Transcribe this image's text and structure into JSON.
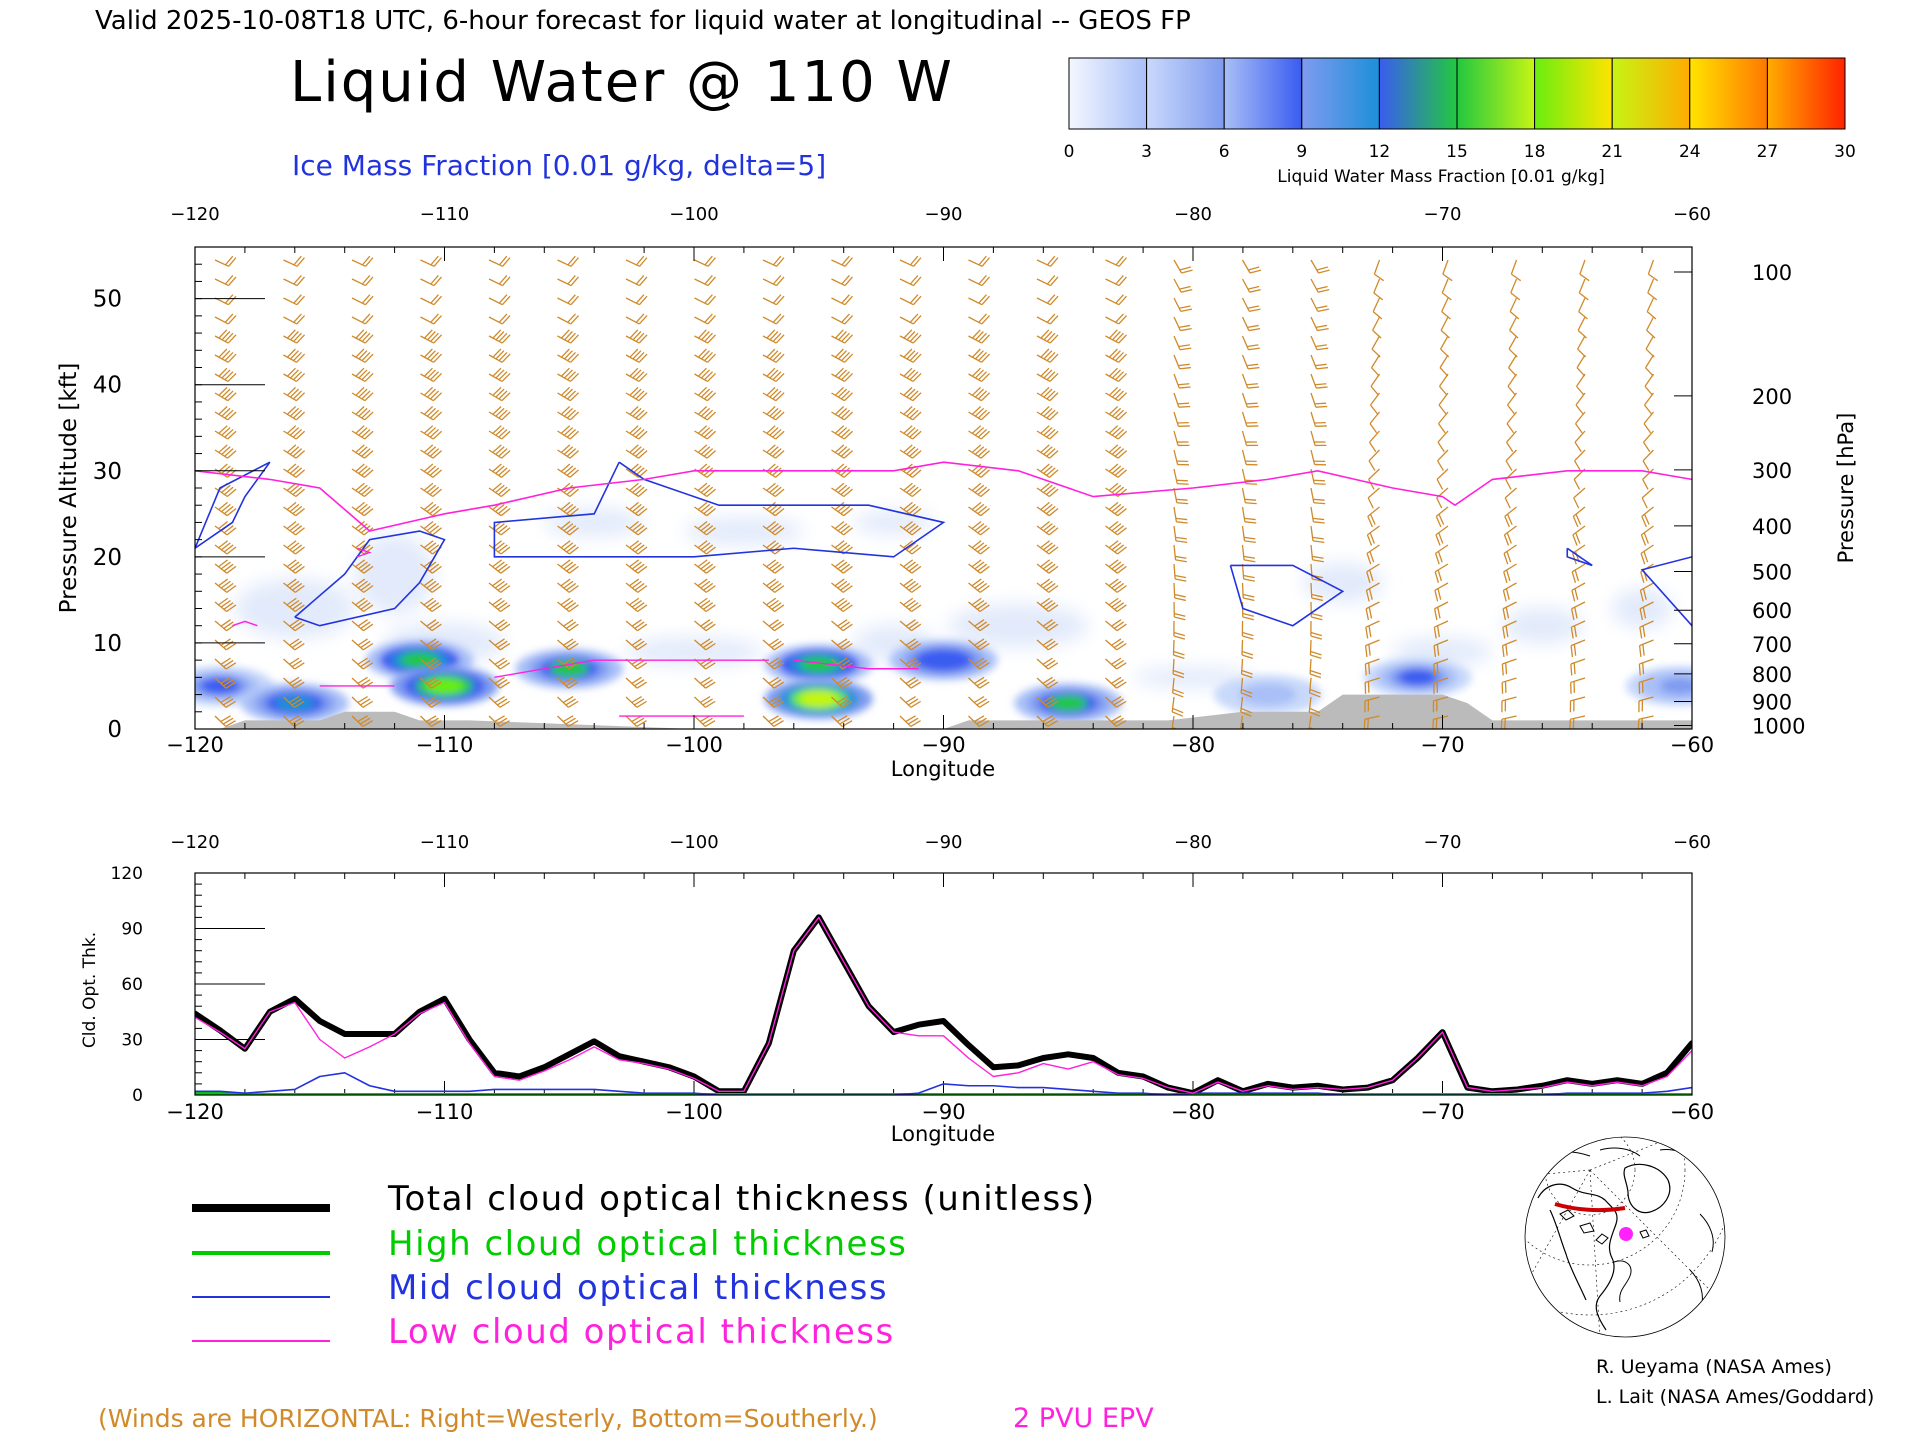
{
  "header": {
    "valid_line": "Valid 2025-10-08T18 UTC, 6-hour forecast for liquid water at longitudinal -- GEOS FP",
    "title": "Liquid Water @ 110 W",
    "ice_label": "Ice Mass Fraction [0.01 g/kg, delta=5]"
  },
  "colorbar": {
    "label": "Liquid Water Mass Fraction [0.01 g/kg]",
    "ticks": [
      "0",
      "3",
      "6",
      "9",
      "12",
      "15",
      "18",
      "21",
      "24",
      "27",
      "30"
    ],
    "colors": [
      "#f4f7ff",
      "#c9d9fb",
      "#a9bff7",
      "#7f9bf0",
      "#3a5cf0",
      "#1d8fd8",
      "#22c840",
      "#69ee10",
      "#c6f514",
      "#ffe400",
      "#ffac00",
      "#ff7700",
      "#ff2200"
    ]
  },
  "colors": {
    "ice_contour": "#2233dd",
    "epv_contour": "#ff22dd",
    "wind_barb": "#d08a2a",
    "terrain": "#bbbbbb",
    "total": "#000000",
    "high": "#00cc00",
    "mid": "#2233dd",
    "low": "#ff22dd"
  },
  "chart_data": [
    {
      "type": "heatmap",
      "title": "Liquid Water @ 110 W",
      "xlabel": "Longitude",
      "ylabel": "Pressure Altitude [kft]",
      "ylabel_right": "Pressure [hPa]",
      "xlim": [
        -120,
        -60
      ],
      "ylim": [
        0,
        56
      ],
      "x_ticks": [
        "-120",
        "-110",
        "-100",
        "-90",
        "-80",
        "-70",
        "-60"
      ],
      "y_ticks": [
        "0",
        "10",
        "20",
        "30",
        "40",
        "50"
      ],
      "pressure_ticks": [
        {
          "label": "100",
          "kft": 53.1
        },
        {
          "label": "200",
          "kft": 38.7
        },
        {
          "label": "300",
          "kft": 30.1
        },
        {
          "label": "400",
          "kft": 23.6
        },
        {
          "label": "500",
          "kft": 18.3
        },
        {
          "label": "600",
          "kft": 13.8
        },
        {
          "label": "700",
          "kft": 9.9
        },
        {
          "label": "800",
          "kft": 6.4
        },
        {
          "label": "900",
          "kft": 3.2
        },
        {
          "label": "1000",
          "kft": 0.4
        }
      ],
      "liquid_water_blobs": [
        {
          "lon": -119,
          "kft": 5,
          "value": 9
        },
        {
          "lon": -116,
          "kft": 3,
          "value": 13
        },
        {
          "lon": -111,
          "kft": 8,
          "value": 15
        },
        {
          "lon": -110,
          "kft": 5,
          "value": 18
        },
        {
          "lon": -105,
          "kft": 7,
          "value": 14
        },
        {
          "lon": -95,
          "kft": 7.5,
          "value": 16
        },
        {
          "lon": -95,
          "kft": 3.5,
          "value": 21
        },
        {
          "lon": -90,
          "kft": 8,
          "value": 11
        },
        {
          "lon": -85,
          "kft": 3,
          "value": 14
        },
        {
          "lon": -77,
          "kft": 4,
          "value": 6
        },
        {
          "lon": -71,
          "kft": 6,
          "value": 9
        },
        {
          "lon": -60.5,
          "kft": 5,
          "value": 7
        }
      ],
      "ice_contours": [
        [
          [
            -120,
            21
          ],
          [
            -119,
            28
          ],
          [
            -117,
            31
          ],
          [
            -118,
            27
          ],
          [
            -118.5,
            24
          ],
          [
            -120,
            21
          ]
        ],
        [
          [
            -116,
            13
          ],
          [
            -114,
            18
          ],
          [
            -113,
            22
          ],
          [
            -111,
            23
          ],
          [
            -110,
            22
          ],
          [
            -111,
            17
          ],
          [
            -112,
            14
          ],
          [
            -115,
            12
          ],
          [
            -116,
            13
          ]
        ],
        [
          [
            -103,
            31
          ],
          [
            -102,
            29
          ],
          [
            -100,
            27
          ],
          [
            -99,
            26
          ],
          [
            -96,
            26
          ],
          [
            -93,
            26
          ],
          [
            -90,
            24
          ],
          [
            -92,
            20
          ],
          [
            -96,
            21
          ],
          [
            -100,
            20
          ],
          [
            -104,
            20
          ],
          [
            -108,
            20
          ],
          [
            -108,
            24
          ],
          [
            -104,
            25
          ],
          [
            -103,
            31
          ]
        ],
        [
          [
            -78.5,
            19
          ],
          [
            -76,
            19
          ],
          [
            -74,
            16
          ],
          [
            -76,
            12
          ],
          [
            -78,
            14
          ],
          [
            -78.5,
            19
          ]
        ],
        [
          [
            -60,
            20
          ],
          [
            -62,
            18.5
          ],
          [
            -60,
            12
          ]
        ],
        [
          [
            -65,
            21
          ],
          [
            -65,
            20
          ],
          [
            -64,
            19
          ],
          [
            -65,
            21
          ]
        ]
      ],
      "epv_2pvu": [
        [
          -120,
          30
        ],
        [
          -117,
          29
        ],
        [
          -115,
          28
        ],
        [
          -113,
          23
        ],
        [
          -110,
          25
        ],
        [
          -108,
          26
        ],
        [
          -105,
          28
        ],
        [
          -102,
          29
        ],
        [
          -100,
          30
        ],
        [
          -95,
          30
        ],
        [
          -92,
          30
        ],
        [
          -90,
          31
        ],
        [
          -87,
          30
        ],
        [
          -84,
          27
        ],
        [
          -80,
          28
        ],
        [
          -77,
          29
        ],
        [
          -75,
          30
        ],
        [
          -72,
          28
        ],
        [
          -70,
          27
        ],
        [
          -69.5,
          26
        ],
        [
          -68,
          29
        ],
        [
          -65,
          30
        ],
        [
          -62,
          30
        ],
        [
          -60,
          29
        ]
      ],
      "terrain": [
        [
          -120,
          0
        ],
        [
          -119,
          0
        ],
        [
          -118,
          1
        ],
        [
          -115,
          1
        ],
        [
          -114,
          2
        ],
        [
          -112,
          2
        ],
        [
          -111,
          1
        ],
        [
          -109,
          1
        ],
        [
          -100,
          0
        ],
        [
          -95,
          0
        ],
        [
          -90,
          0
        ],
        [
          -89,
          1
        ],
        [
          -81,
          1
        ],
        [
          -78,
          2
        ],
        [
          -75,
          2
        ],
        [
          -74,
          4
        ],
        [
          -70,
          4
        ],
        [
          -69,
          3
        ],
        [
          -68,
          1
        ],
        [
          -60,
          1
        ]
      ]
    },
    {
      "type": "line",
      "xlabel": "Longitude",
      "ylabel": "Cld. Opt. Thk.",
      "xlim": [
        -120,
        -60
      ],
      "ylim": [
        0,
        120
      ],
      "x_ticks": [
        "-120",
        "-110",
        "-100",
        "-90",
        "-80",
        "-70",
        "-60"
      ],
      "y_ticks": [
        "0",
        "30",
        "60",
        "90",
        "120"
      ],
      "x": [
        -120,
        -119,
        -118,
        -117,
        -116,
        -115,
        -114,
        -113,
        -112,
        -111,
        -110,
        -109,
        -108,
        -107,
        -106,
        -105,
        -104,
        -103,
        -102,
        -101,
        -100,
        -99,
        -98,
        -97,
        -96,
        -95,
        -94,
        -93,
        -92,
        -91,
        -90,
        -89,
        -88,
        -87,
        -86,
        -85,
        -84,
        -83,
        -82,
        -81,
        -80,
        -79,
        -78,
        -77,
        -76,
        -75,
        -74,
        -73,
        -72,
        -71,
        -70,
        -69,
        -68,
        -67,
        -66,
        -65,
        -64,
        -63,
        -62,
        -61,
        -60
      ],
      "series": [
        {
          "name": "Total cloud optical thickness (unitless)",
          "values": [
            44,
            35,
            25,
            45,
            52,
            40,
            33,
            33,
            33,
            45,
            52,
            30,
            12,
            10,
            15,
            22,
            29,
            21,
            18,
            15,
            10,
            2,
            2,
            28,
            78,
            96,
            72,
            48,
            34,
            38,
            40,
            27,
            15,
            16,
            20,
            22,
            20,
            12,
            10,
            4,
            1,
            8,
            2,
            6,
            4,
            5,
            3,
            4,
            8,
            20,
            34,
            4,
            2,
            3,
            5,
            8,
            6,
            8,
            6,
            12,
            28
          ]
        },
        {
          "name": "High cloud optical thickness",
          "values": [
            1,
            1,
            0,
            0,
            0,
            0,
            0,
            0,
            0,
            0,
            0,
            0,
            0,
            0,
            0,
            0,
            0,
            0,
            0,
            0,
            0,
            0,
            0,
            0,
            0,
            0,
            0,
            0,
            0,
            0,
            0,
            0,
            0,
            0,
            0,
            0,
            0,
            0,
            0,
            0,
            0,
            0,
            0,
            0,
            0,
            0,
            0,
            0,
            0,
            0,
            0,
            0,
            0,
            0,
            0,
            0,
            0,
            0,
            0,
            0,
            0
          ]
        },
        {
          "name": "Mid cloud optical thickness",
          "values": [
            2,
            2,
            1,
            2,
            3,
            10,
            12,
            5,
            2,
            2,
            2,
            2,
            3,
            3,
            3,
            3,
            3,
            2,
            1,
            1,
            1,
            0,
            0,
            0,
            0,
            0,
            0,
            0,
            0,
            1,
            6,
            5,
            5,
            4,
            4,
            3,
            2,
            1,
            1,
            0,
            1,
            1,
            1,
            1,
            1,
            1,
            0,
            0,
            0,
            0,
            0,
            0,
            0,
            0,
            0,
            1,
            1,
            1,
            1,
            2,
            4
          ]
        },
        {
          "name": "Low cloud optical thickness",
          "values": [
            42,
            34,
            25,
            45,
            50,
            30,
            20,
            26,
            33,
            44,
            50,
            28,
            10,
            8,
            13,
            19,
            26,
            19,
            17,
            14,
            9,
            2,
            2,
            28,
            78,
            96,
            72,
            48,
            34,
            32,
            32,
            20,
            10,
            12,
            17,
            14,
            18,
            11,
            9,
            4,
            1,
            7,
            2,
            5,
            3,
            4,
            3,
            4,
            8,
            20,
            34,
            4,
            2,
            3,
            4,
            7,
            5,
            7,
            5,
            10,
            24
          ]
        }
      ]
    }
  ],
  "legend": {
    "total": "Total cloud optical thickness (unitless)",
    "high": "High cloud optical thickness",
    "mid": "Mid cloud optical thickness",
    "low": "Low cloud optical thickness"
  },
  "footer": {
    "winds_note": "(Winds are HORIZONTAL: Right=Westerly, Bottom=Southerly.)",
    "epv_label": "2 PVU EPV",
    "credit1": "R. Ueyama (NASA Ames)",
    "credit2": "L. Lait (NASA Ames/Goddard)"
  },
  "map": {
    "marker_color": "#ff22ff",
    "track_color": "#cc0000"
  }
}
